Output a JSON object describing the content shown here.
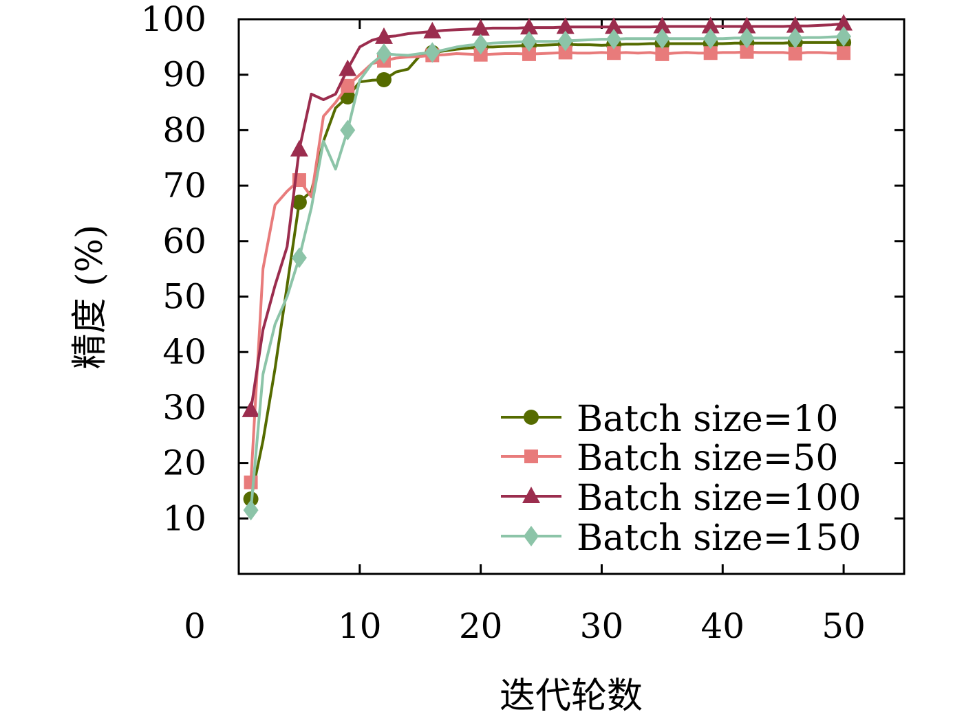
{
  "chart_data": {
    "type": "line",
    "xlabel": "迭代轮数",
    "ylabel": "精度 (%)",
    "xlim": [
      0,
      55
    ],
    "ylim": [
      0,
      100
    ],
    "x_ticks": [
      0,
      10,
      20,
      30,
      40,
      50
    ],
    "y_ticks": [
      10,
      20,
      30,
      40,
      50,
      60,
      70,
      80,
      90,
      100
    ],
    "grid": false,
    "legend_position": "bottom-right",
    "series": [
      {
        "name": "Batch size=10",
        "color": "#556b00",
        "marker": "circle",
        "x": [
          1,
          2,
          3,
          4,
          5,
          6,
          7,
          8,
          9,
          10,
          11,
          12,
          13,
          14,
          15,
          16,
          17,
          18,
          19,
          20,
          21,
          22,
          23,
          24,
          25,
          26,
          27,
          28,
          29,
          30,
          31,
          32,
          33,
          34,
          35,
          36,
          37,
          38,
          39,
          40,
          41,
          42,
          43,
          44,
          45,
          46,
          47,
          48,
          49,
          50
        ],
        "y": [
          13.5,
          24,
          37,
          52,
          67,
          69,
          78,
          84,
          86,
          88.7,
          89,
          89.1,
          90.5,
          91,
          93.5,
          94,
          94.3,
          94.6,
          94.8,
          95,
          95,
          95.1,
          95.2,
          95.3,
          95.3,
          95.4,
          95.5,
          95.4,
          95.4,
          95.3,
          95.4,
          95.5,
          95.5,
          95.6,
          95.6,
          95.6,
          95.6,
          95.6,
          95.6,
          95.6,
          95.7,
          95.7,
          95.7,
          95.7,
          95.7,
          95.8,
          95.8,
          95.8,
          95.8,
          95.8
        ],
        "marker_x": [
          1,
          5,
          9,
          12,
          16,
          20,
          24,
          27,
          31,
          35,
          39,
          42,
          46,
          50
        ]
      },
      {
        "name": "Batch size=50",
        "color": "#e87b7b",
        "marker": "square",
        "x": [
          1,
          2,
          3,
          4,
          5,
          6,
          7,
          8,
          9,
          10,
          11,
          12,
          13,
          14,
          15,
          16,
          17,
          18,
          19,
          20,
          21,
          22,
          23,
          24,
          25,
          26,
          27,
          28,
          29,
          30,
          31,
          32,
          33,
          34,
          35,
          36,
          37,
          38,
          39,
          40,
          41,
          42,
          43,
          44,
          45,
          46,
          47,
          48,
          49,
          50
        ],
        "y": [
          16.5,
          55,
          66.5,
          69,
          71,
          68,
          82.5,
          85,
          88,
          90,
          92,
          92.5,
          93,
          93.2,
          93.3,
          93.5,
          93.6,
          93.8,
          93.7,
          93.6,
          93.7,
          93.8,
          93.8,
          93.7,
          93.8,
          93.9,
          94,
          93.9,
          93.9,
          94,
          93.9,
          94,
          93.9,
          94,
          93.7,
          93.9,
          94,
          93.9,
          93.9,
          94,
          94,
          94.1,
          94,
          94,
          94,
          93.8,
          94,
          94,
          93.9,
          93.9
        ],
        "marker_x": [
          1,
          5,
          9,
          12,
          16,
          20,
          24,
          27,
          31,
          35,
          39,
          42,
          46,
          50
        ]
      },
      {
        "name": "Batch size=100",
        "color": "#9b2d4e",
        "marker": "triangle",
        "x": [
          1,
          2,
          3,
          4,
          5,
          6,
          7,
          8,
          9,
          10,
          11,
          12,
          13,
          14,
          15,
          16,
          17,
          18,
          19,
          20,
          21,
          22,
          23,
          24,
          25,
          26,
          27,
          28,
          29,
          30,
          31,
          32,
          33,
          34,
          35,
          36,
          37,
          38,
          39,
          40,
          41,
          42,
          43,
          44,
          45,
          46,
          47,
          48,
          49,
          50
        ],
        "y": [
          29.5,
          44,
          52,
          59,
          76.5,
          86.5,
          85.5,
          86.5,
          91,
          95,
          96.2,
          96.8,
          97,
          97.4,
          97.6,
          97.8,
          98,
          98.1,
          98.2,
          98.3,
          98.4,
          98.4,
          98.4,
          98.5,
          98.5,
          98.5,
          98.6,
          98.6,
          98.6,
          98.6,
          98.6,
          98.6,
          98.6,
          98.6,
          98.7,
          98.7,
          98.7,
          98.7,
          98.7,
          98.7,
          98.7,
          98.7,
          98.7,
          98.7,
          98.7,
          98.8,
          98.8,
          98.9,
          99,
          99.2
        ],
        "marker_x": [
          1,
          5,
          9,
          12,
          16,
          20,
          24,
          27,
          31,
          35,
          39,
          42,
          46,
          50
        ]
      },
      {
        "name": "Batch size=150",
        "color": "#8cc4a8",
        "marker": "diamond",
        "x": [
          1,
          2,
          3,
          4,
          5,
          6,
          7,
          8,
          9,
          10,
          11,
          12,
          13,
          14,
          15,
          16,
          17,
          18,
          19,
          20,
          21,
          22,
          23,
          24,
          25,
          26,
          27,
          28,
          29,
          30,
          31,
          32,
          33,
          34,
          35,
          36,
          37,
          38,
          39,
          40,
          41,
          42,
          43,
          44,
          45,
          46,
          47,
          48,
          49,
          50
        ],
        "y": [
          11.5,
          36,
          45,
          50,
          57,
          66,
          78,
          73,
          80,
          89,
          92,
          93.8,
          93.6,
          93.5,
          93.8,
          94,
          94.5,
          95,
          95.3,
          95.5,
          95.7,
          95.8,
          95.9,
          96,
          96,
          96,
          96.1,
          96.2,
          96.3,
          96.4,
          96.4,
          96.5,
          96.5,
          96.5,
          96.5,
          96.5,
          96.5,
          96.5,
          96.5,
          96.5,
          96.6,
          96.6,
          96.6,
          96.6,
          96.6,
          96.6,
          96.7,
          96.7,
          96.8,
          96.9
        ],
        "marker_x": [
          1,
          5,
          9,
          12,
          16,
          20,
          24,
          27,
          31,
          35,
          39,
          42,
          46,
          50
        ]
      }
    ]
  }
}
